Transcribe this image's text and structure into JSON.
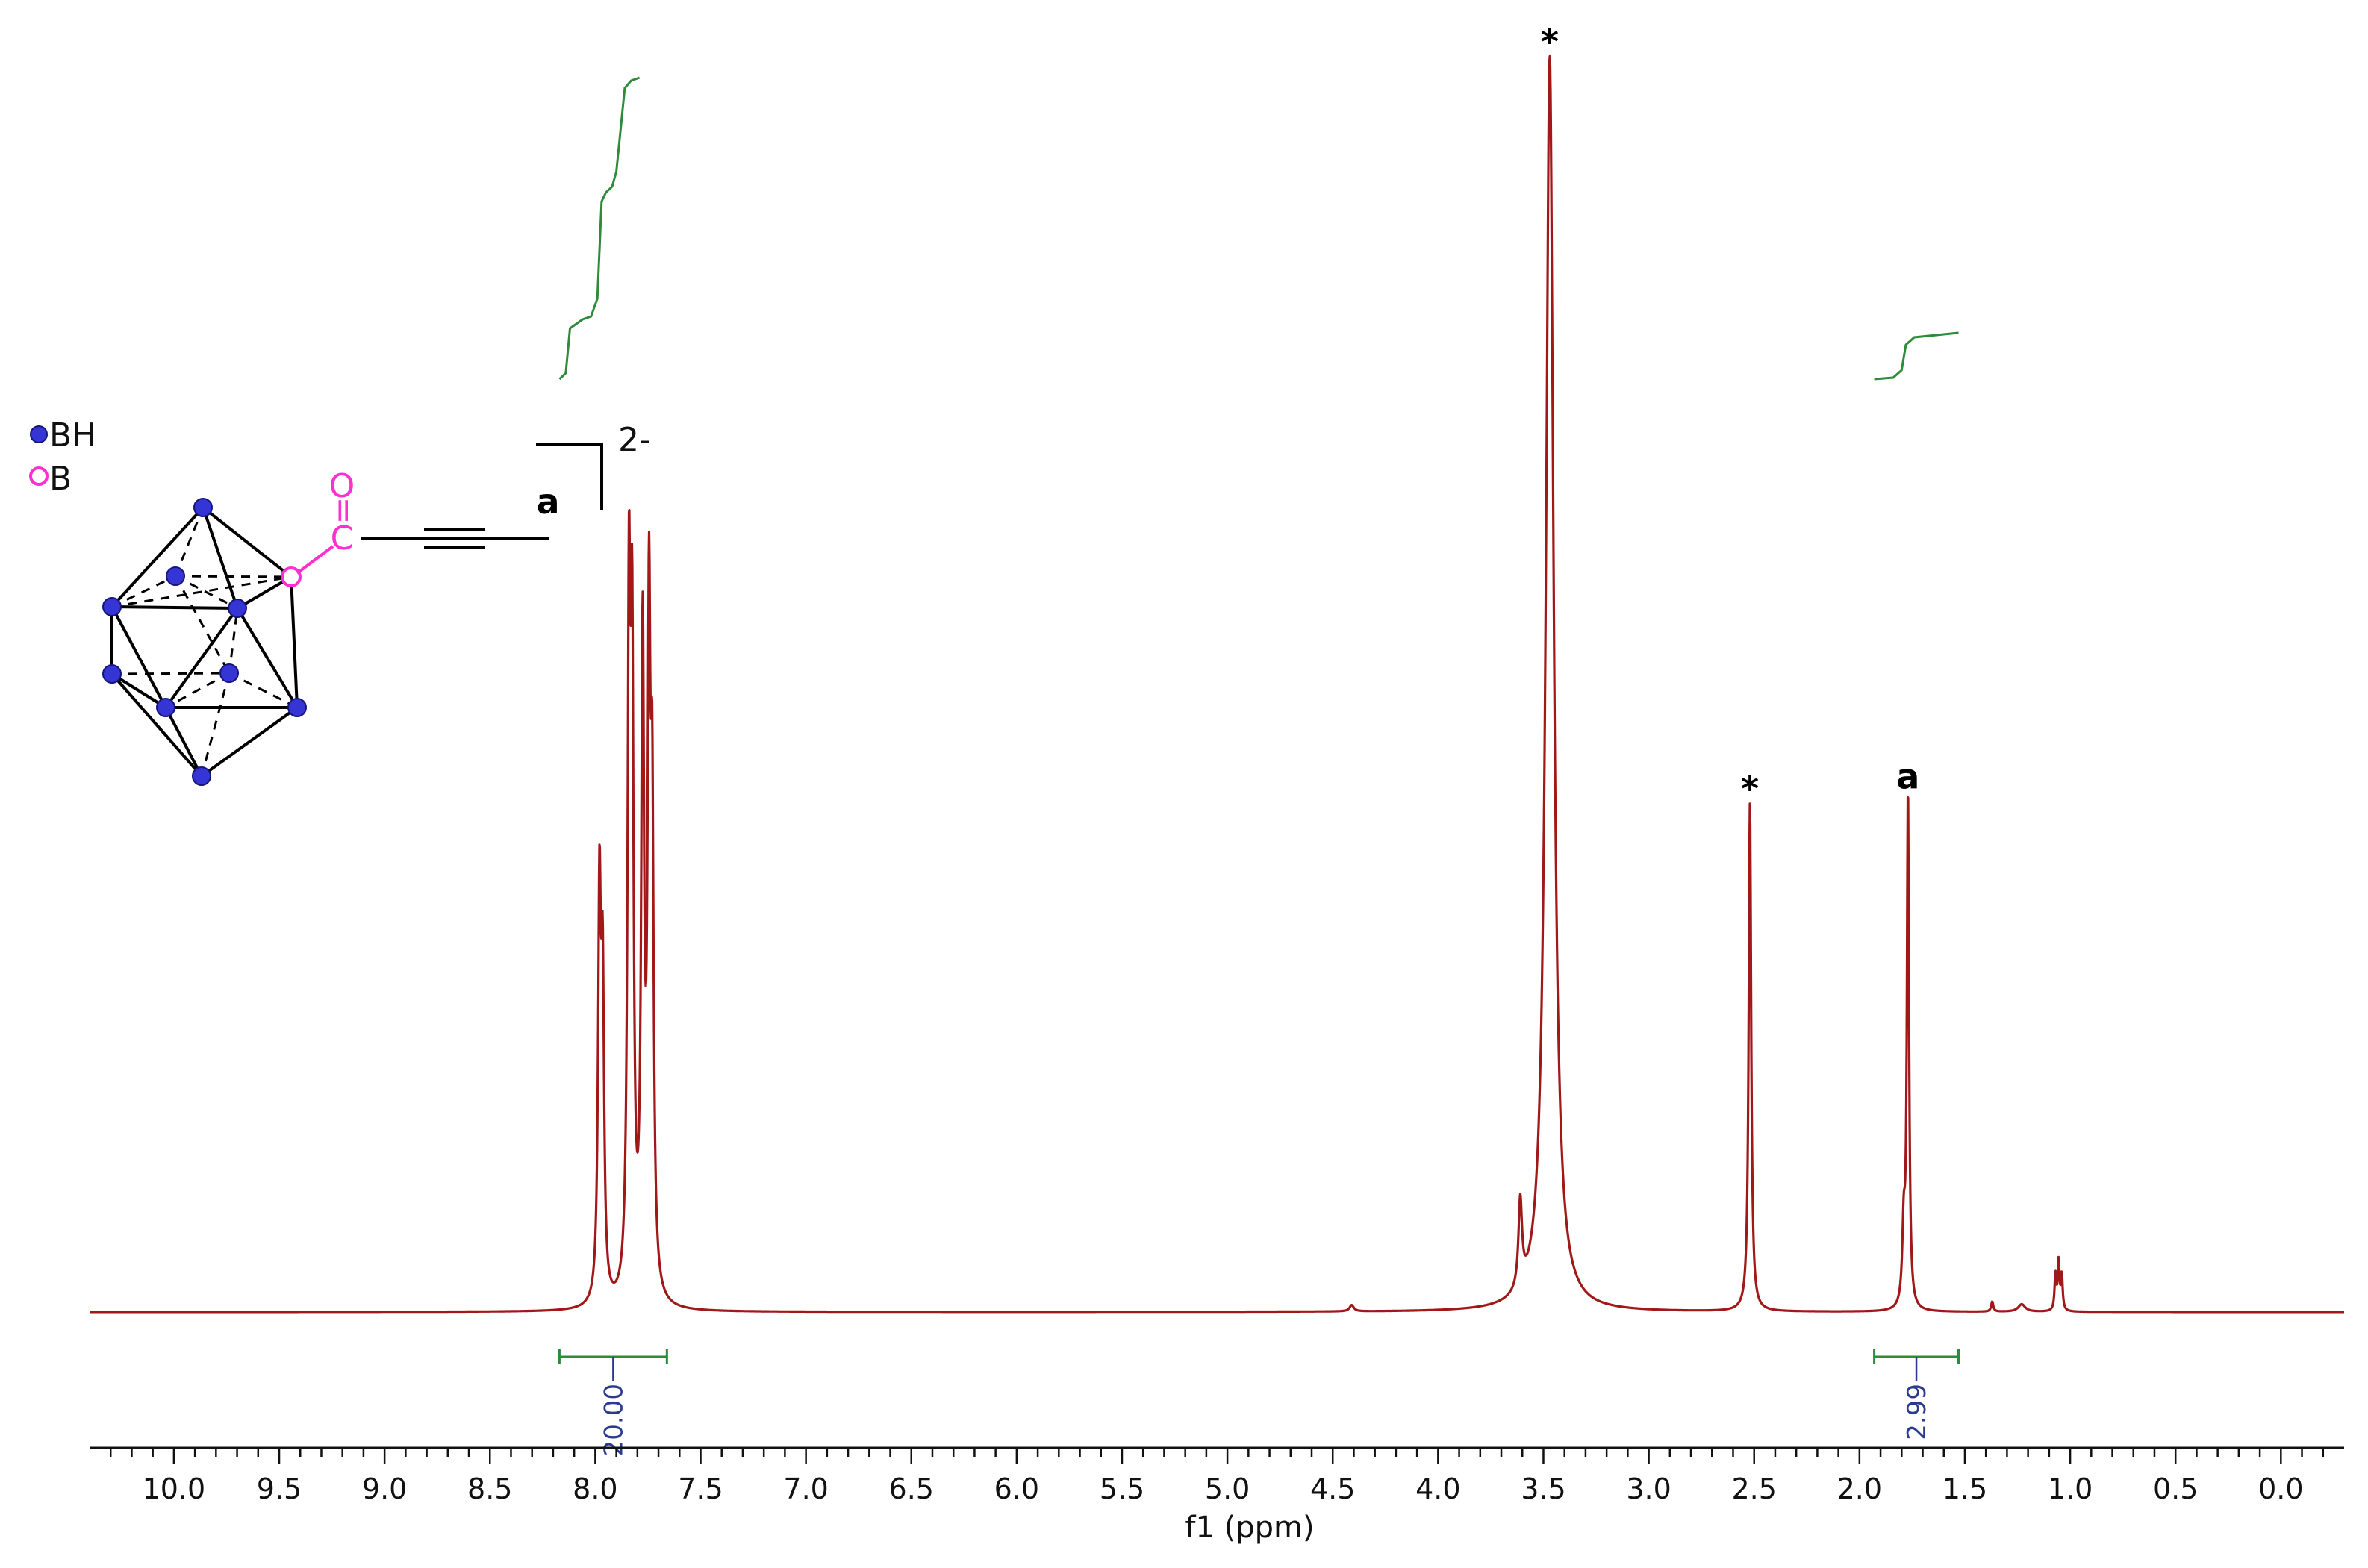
{
  "chart_data": {
    "type": "line",
    "title": "",
    "xlabel": "f1 (ppm)",
    "ylabel": "",
    "xlim": [
      10.4,
      -0.3
    ],
    "x_reversed": true,
    "grid": false,
    "xticks": [
      10.0,
      9.5,
      9.0,
      8.5,
      8.0,
      7.5,
      7.0,
      6.5,
      6.0,
      5.5,
      5.0,
      4.5,
      4.0,
      3.5,
      3.0,
      2.5,
      2.0,
      1.5,
      1.0,
      0.5,
      0.0
    ],
    "xtick_labels": [
      "10.0",
      "9.5",
      "9.0",
      "8.5",
      "8.0",
      "7.5",
      "7.0",
      "6.5",
      "6.0",
      "5.5",
      "5.0",
      "4.5",
      "4.0",
      "3.5",
      "3.0",
      "2.5",
      "2.0",
      "1.5",
      "1.0",
      "0.5",
      "0.0"
    ],
    "series": [
      {
        "color": "#a01818",
        "peaks": [
          {
            "ppm": 7.98,
            "height": 0.315,
            "width": 0.008
          },
          {
            "ppm": 7.965,
            "height": 0.24,
            "width": 0.008
          },
          {
            "ppm": 7.84,
            "height": 0.52,
            "width": 0.008
          },
          {
            "ppm": 7.825,
            "height": 0.47,
            "width": 0.008
          },
          {
            "ppm": 7.775,
            "height": 0.51,
            "width": 0.008
          },
          {
            "ppm": 7.745,
            "height": 0.5,
            "width": 0.008
          },
          {
            "ppm": 7.73,
            "height": 0.35,
            "width": 0.008
          },
          {
            "ppm": 4.41,
            "height": 0.005,
            "width": 0.012
          },
          {
            "ppm": 3.61,
            "height": 0.07,
            "width": 0.01
          },
          {
            "ppm": 3.47,
            "height": 1.0,
            "width": 0.022
          },
          {
            "ppm": 2.52,
            "height": 0.405,
            "width": 0.007
          },
          {
            "ppm": 1.79,
            "height": 0.06,
            "width": 0.008
          },
          {
            "ppm": 1.77,
            "height": 0.41,
            "width": 0.006
          },
          {
            "ppm": 1.37,
            "height": 0.008,
            "width": 0.006
          },
          {
            "ppm": 1.23,
            "height": 0.006,
            "width": 0.02
          },
          {
            "ppm": 1.07,
            "height": 0.028,
            "width": 0.005
          },
          {
            "ppm": 1.055,
            "height": 0.038,
            "width": 0.005
          },
          {
            "ppm": 1.04,
            "height": 0.028,
            "width": 0.005
          }
        ]
      }
    ],
    "integrals": [
      {
        "from": 8.17,
        "to": 7.66,
        "value": "20.00"
      },
      {
        "from": 1.93,
        "to": 1.53,
        "value": "2.99"
      }
    ],
    "integral_color": "#2e8b3a",
    "annotations": [
      {
        "text": "*",
        "ppm": 3.47
      },
      {
        "text": "*",
        "ppm": 2.52
      },
      {
        "text": "a",
        "ppm": 1.77
      }
    ]
  },
  "inset": {
    "legend": [
      {
        "label": "BH",
        "color": "#3535d6"
      },
      {
        "label": "B",
        "color": "#ff2fd0"
      }
    ],
    "charge": "2-",
    "carbonyl_o": "O",
    "carbonyl_double": "=",
    "carbonyl_c": "C",
    "methyl_label": "a"
  }
}
